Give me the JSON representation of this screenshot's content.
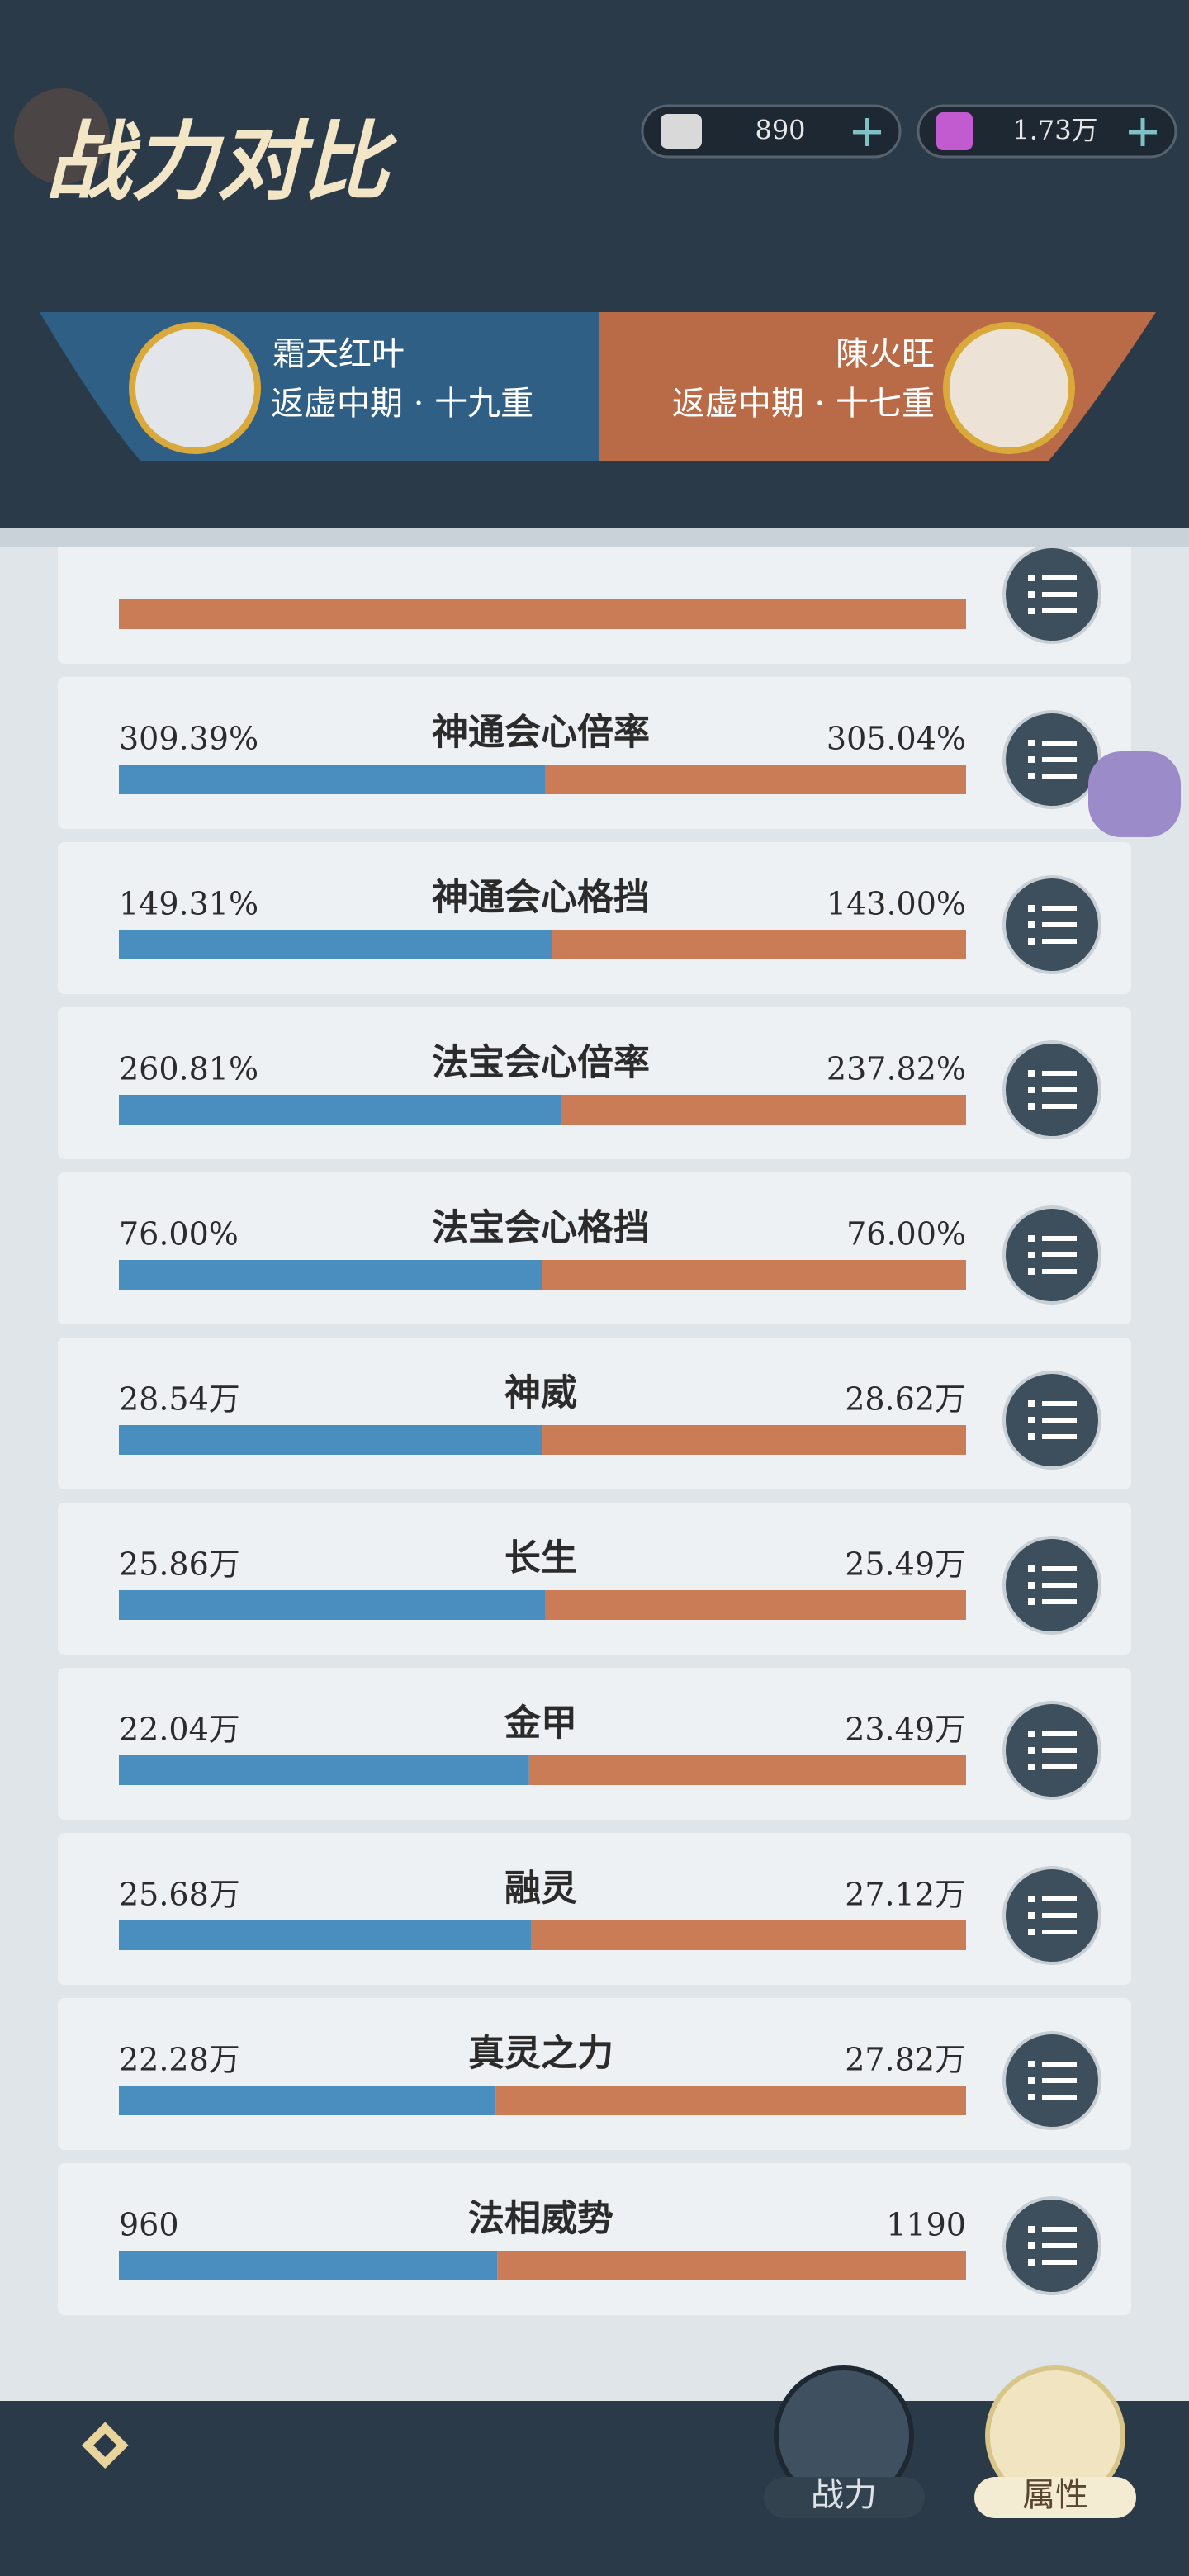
{
  "header": {
    "title": "战力对比",
    "currencies": [
      "890",
      "1.73万"
    ]
  },
  "players": {
    "left": {
      "name": "霜天红叶",
      "realm": "返虚中期 · 十九重"
    },
    "right": {
      "name": "陳火旺",
      "realm": "返虚中期 · 十七重"
    }
  },
  "rows": [
    {
      "name": "神通会心倍率",
      "left": "309.39%",
      "right": "305.04%"
    },
    {
      "name": "神通会心格挡",
      "left": "149.31%",
      "right": "143.00%"
    },
    {
      "name": "法宝会心倍率",
      "left": "260.81%",
      "right": "237.82%"
    },
    {
      "name": "法宝会心格挡",
      "left": "76.00%",
      "right": "76.00%"
    },
    {
      "name": "神威",
      "left": "28.54万",
      "right": "28.62万"
    },
    {
      "name": "长生",
      "left": "25.86万",
      "right": "25.49万"
    },
    {
      "name": "金甲",
      "left": "22.04万",
      "right": "23.49万"
    },
    {
      "name": "融灵",
      "left": "25.68万",
      "right": "27.12万"
    },
    {
      "name": "真灵之力",
      "left": "22.28万",
      "right": "27.82万"
    },
    {
      "name": "法相威势",
      "left": "960",
      "right": "1190"
    }
  ],
  "nav": {
    "tabs": [
      "战力",
      "属性"
    ]
  }
}
